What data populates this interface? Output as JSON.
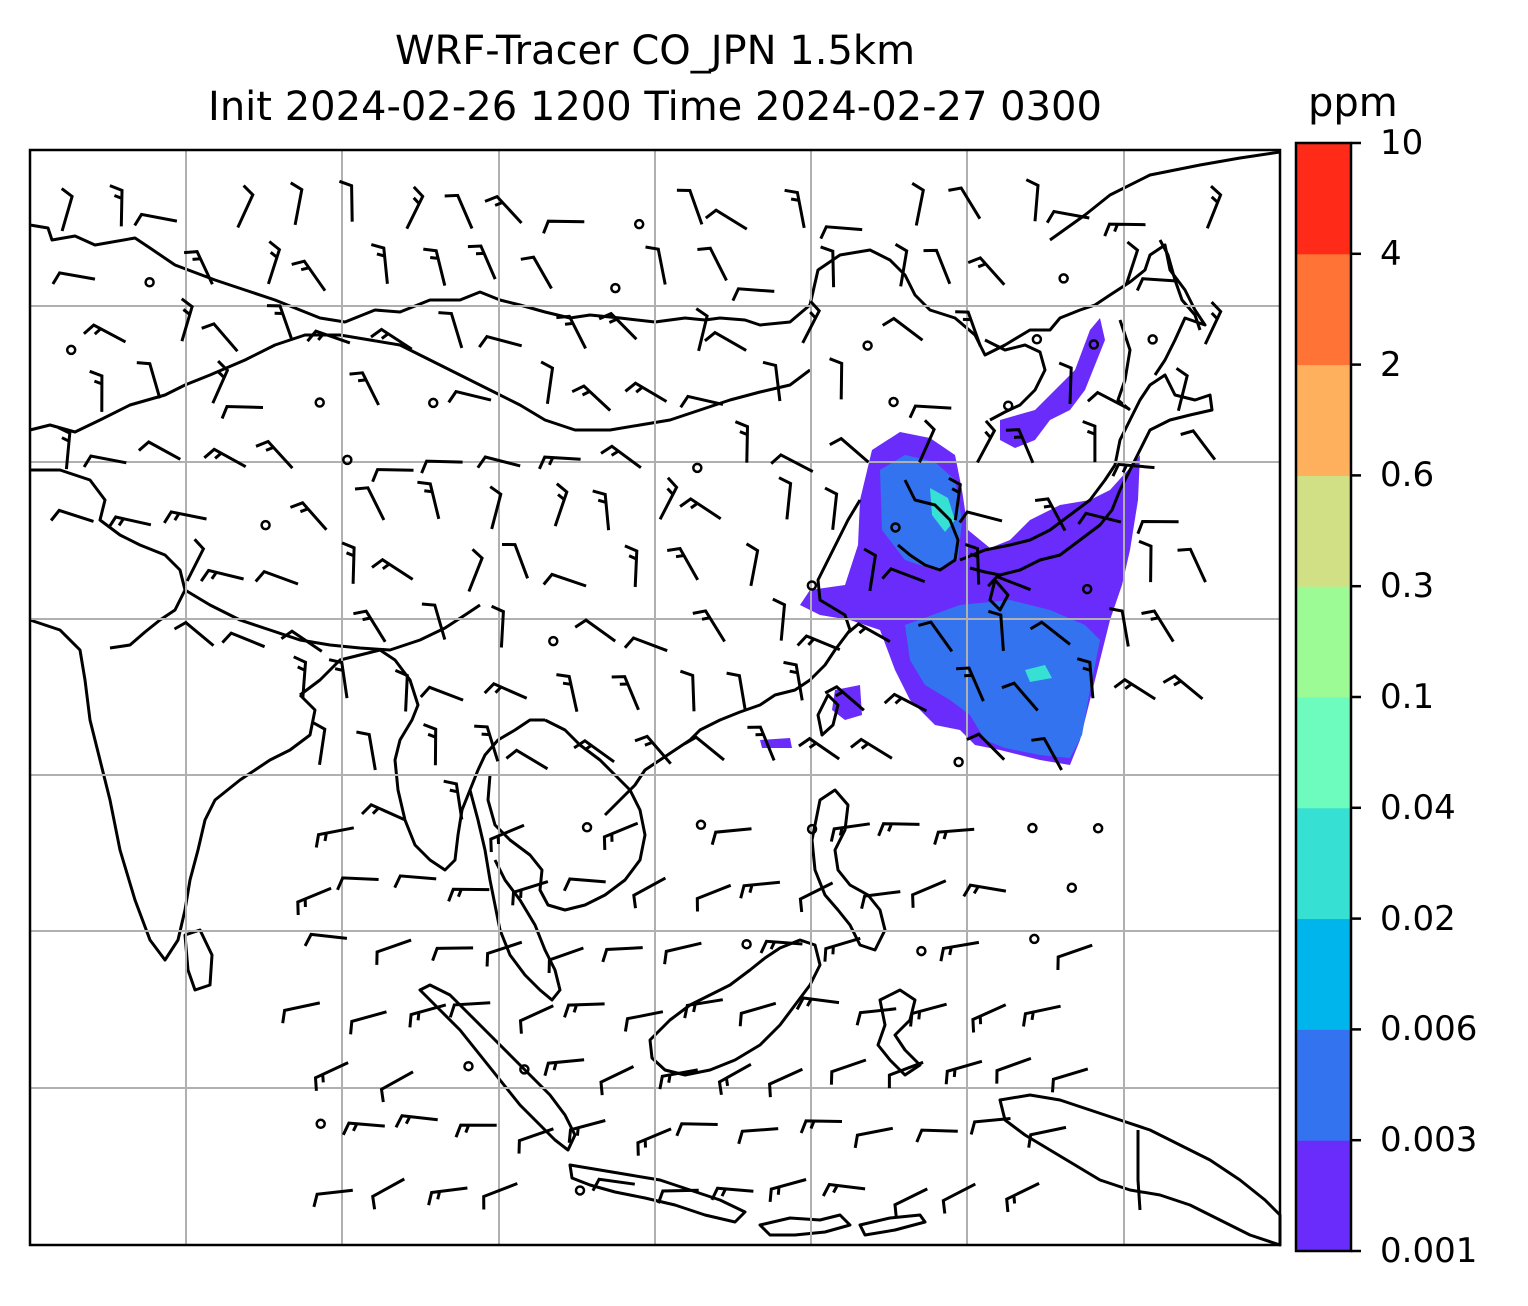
{
  "title": {
    "line1": "WRF-Tracer CO_JPN 1.5km",
    "line2": "Init 2024-02-26 1200 Time 2024-02-27 0300"
  },
  "colorbar": {
    "unit": "ppm",
    "ticks": [
      "0.001",
      "0.003",
      "0.006",
      "0.02",
      "0.04",
      "0.1",
      "0.3",
      "0.6",
      "2",
      "4",
      "10"
    ],
    "colors": [
      "#6a2cfb",
      "#3473f0",
      "#00b4ec",
      "#36e0d2",
      "#6efbbe",
      "#9cfb94",
      "#d1e084",
      "#feb05d",
      "#ff7337",
      "#ff2a17"
    ]
  },
  "map": {
    "field": "CO tracer concentration with wind barbs",
    "plume_colors": {
      "low": "#6a2cfb",
      "mid": "#3473f0",
      "high": "#36e0d2"
    }
  }
}
